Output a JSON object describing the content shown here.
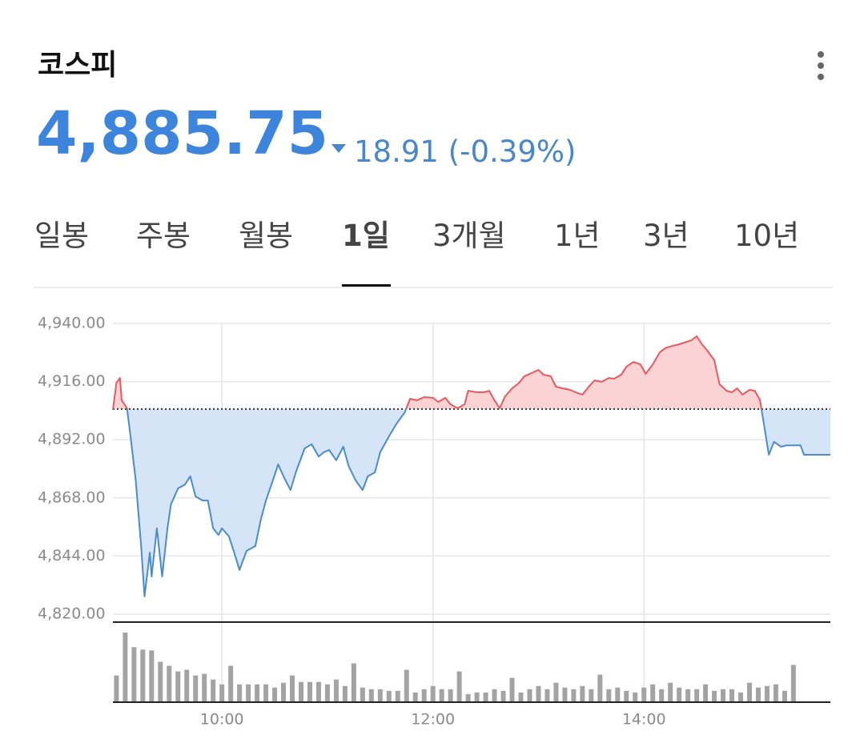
{
  "header": {
    "title": "코스피",
    "price": "4,885.75",
    "change": "18.91 (-0.39%)"
  },
  "tabs": [
    "일봉",
    "주봉",
    "월봉",
    "1일",
    "3개월",
    "1년",
    "3년",
    "10년"
  ],
  "selected_tab": 3,
  "chart_data": {
    "type": "line",
    "x": [
      538,
      540,
      542,
      543,
      546,
      548,
      551,
      554,
      556,
      559,
      560,
      563,
      566,
      569,
      571,
      575,
      579,
      582,
      585,
      589,
      592,
      595,
      598,
      600,
      604,
      607,
      610,
      614,
      619,
      622,
      625,
      629,
      632,
      635,
      639,
      642,
      647,
      651,
      655,
      658,
      661,
      665,
      669,
      672,
      676,
      680,
      683,
      687,
      690,
      695,
      699,
      704,
      707,
      711,
      715,
      720,
      723,
      727,
      730,
      734,
      738,
      740,
      745,
      749,
      752,
      755,
      758,
      761,
      765,
      769,
      772,
      776,
      780,
      783,
      787,
      790,
      794,
      798,
      801,
      805,
      809,
      812,
      816,
      820,
      823,
      827,
      830,
      834,
      838,
      841,
      845,
      849,
      852,
      856,
      860,
      863,
      867,
      870,
      873,
      876,
      880,
      883,
      887,
      890,
      893,
      896,
      900,
      903,
      906,
      909,
      911,
      914,
      918,
      921,
      924,
      929,
      931,
      946
    ],
    "values": [
      4904.3,
      4915.5,
      4917.5,
      4908.3,
      4905.0,
      4893.4,
      4875.2,
      4848.8,
      4827.3,
      4845.4,
      4835.5,
      4855.4,
      4835.5,
      4855.4,
      4865.3,
      4871.9,
      4873.5,
      4876.9,
      4868.6,
      4866.9,
      4866.9,
      4855.4,
      4852.7,
      4855.4,
      4852.1,
      4845.4,
      4838.2,
      4846.1,
      4848.1,
      4858.7,
      4866.9,
      4875.2,
      4881.8,
      4876.9,
      4871.2,
      4878.5,
      4888.4,
      4890.1,
      4885.1,
      4886.8,
      4887.8,
      4883.5,
      4889.1,
      4881.2,
      4875.2,
      4871.2,
      4876.9,
      4878.5,
      4886.8,
      4893.4,
      4898.3,
      4903.3,
      4908.9,
      4908.3,
      4909.6,
      4909.3,
      4907.6,
      4909.3,
      4906.6,
      4905.0,
      4906.6,
      4912.2,
      4911.6,
      4911.6,
      4912.2,
      4908.3,
      4905.0,
      4909.9,
      4913.2,
      4915.5,
      4918.2,
      4919.5,
      4920.8,
      4918.8,
      4918.2,
      4913.9,
      4913.2,
      4912.6,
      4911.6,
      4910.6,
      4914.2,
      4916.5,
      4915.9,
      4917.5,
      4917.2,
      4918.8,
      4922.1,
      4924.1,
      4923.1,
      4919.2,
      4923.1,
      4928.1,
      4929.8,
      4930.7,
      4931.4,
      4932.1,
      4933.1,
      4934.7,
      4931.4,
      4928.8,
      4924.8,
      4914.9,
      4912.2,
      4911.6,
      4913.2,
      4910.6,
      4912.6,
      4912.2,
      4908.3,
      4895.0,
      4885.8,
      4891.1,
      4889.1,
      4889.7,
      4889.7,
      4889.7,
      4885.8,
      4885.8
    ],
    "baseline": 4904.66,
    "up_color": "#e8595e",
    "up_fill": "#fbd3d5",
    "down_color": "#4a8bc9",
    "down_fill": "#d5e5f7",
    "xlim": [
      538,
      946
    ],
    "xticks": [
      {
        "value": 600,
        "label": "10:00"
      },
      {
        "value": 720,
        "label": "12:00"
      },
      {
        "value": 840,
        "label": "14:00"
      }
    ],
    "ylim": [
      4820,
      4940
    ],
    "yticks": [
      {
        "value": 4820,
        "label": "4,820.00"
      },
      {
        "value": 4844,
        "label": "4,844.00"
      },
      {
        "value": 4868,
        "label": "4,868.00"
      },
      {
        "value": 4892,
        "label": "4,892.00"
      },
      {
        "value": 4916,
        "label": "4,916.00"
      },
      {
        "value": 4940,
        "label": "4,940.00"
      }
    ],
    "grid": true,
    "volume": {
      "type": "bar",
      "color": "#a3a3a3",
      "ylim": [
        0,
        96
      ],
      "x": [
        540,
        545,
        550,
        555,
        560,
        565,
        570,
        575,
        580,
        585,
        590,
        595,
        600,
        605,
        610,
        615,
        620,
        625,
        630,
        635,
        640,
        645,
        650,
        655,
        660,
        665,
        670,
        675,
        680,
        685,
        690,
        695,
        700,
        705,
        710,
        715,
        720,
        725,
        730,
        735,
        740,
        745,
        750,
        755,
        760,
        765,
        770,
        775,
        780,
        785,
        790,
        795,
        800,
        805,
        810,
        815,
        820,
        825,
        830,
        835,
        840,
        845,
        850,
        855,
        860,
        865,
        870,
        875,
        880,
        885,
        890,
        895,
        900,
        905,
        910,
        915,
        920,
        925
      ],
      "values": [
        33,
        86,
        68,
        65,
        64,
        50,
        45,
        38,
        40,
        33,
        35,
        28,
        22,
        45,
        22,
        22,
        22,
        22,
        18,
        24,
        33,
        25,
        25,
        25,
        22,
        28,
        20,
        48,
        18,
        16,
        16,
        14,
        14,
        40,
        12,
        16,
        20,
        16,
        16,
        38,
        10,
        12,
        12,
        16,
        14,
        30,
        12,
        16,
        20,
        16,
        24,
        18,
        16,
        20,
        16,
        34,
        16,
        18,
        14,
        12,
        18,
        22,
        16,
        24,
        18,
        16,
        16,
        22,
        14,
        16,
        16,
        12,
        24,
        18,
        20,
        22,
        14,
        46
      ]
    }
  }
}
